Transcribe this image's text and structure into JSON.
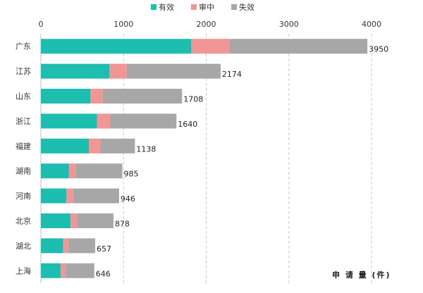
{
  "chart_data": {
    "type": "bar",
    "orientation": "horizontal",
    "stacked": true,
    "title": "",
    "xlabel": "申 请 量 (件)",
    "ylabel": "",
    "xlim": [
      0,
      4000
    ],
    "xticks": [
      0,
      1000,
      2000,
      3000,
      4000
    ],
    "xticks_labels": [
      "0",
      "1000",
      "2000",
      "3000",
      "4000"
    ],
    "legend_position": "top-center",
    "gridlines": "vertical-dashed",
    "categories": [
      "广东",
      "江苏",
      "山东",
      "浙江",
      "福建",
      "湖南",
      "河南",
      "北京",
      "湖北",
      "上海"
    ],
    "series": [
      {
        "name": "有效",
        "color": "#1dbdb0",
        "values": [
          1820,
          830,
          600,
          680,
          580,
          340,
          310,
          360,
          270,
          240
        ]
      },
      {
        "name": "审中",
        "color": "#f29595",
        "values": [
          460,
          210,
          150,
          160,
          140,
          80,
          80,
          80,
          60,
          60
        ]
      },
      {
        "name": "失效",
        "color": "#a7a7a7",
        "values": [
          1670,
          1134,
          958,
          800,
          418,
          565,
          556,
          438,
          327,
          346
        ]
      }
    ],
    "totals": [
      3950,
      2174,
      1708,
      1640,
      1138,
      985,
      946,
      878,
      657,
      646
    ],
    "totals_labels": [
      "3950",
      "2174",
      "1708",
      "1640",
      "1138",
      "985",
      "946",
      "878",
      "657",
      "646"
    ]
  }
}
